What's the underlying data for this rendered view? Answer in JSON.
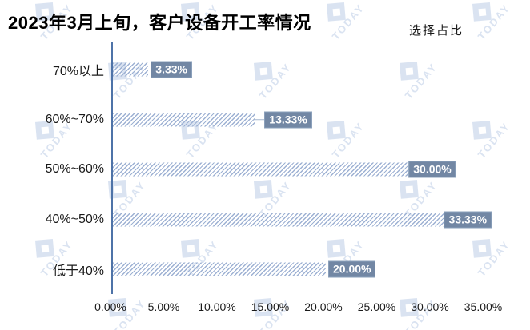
{
  "title": "2023年3月上旬，客户设备开工率情况",
  "legend": "选择占比",
  "watermark": {
    "text": "TODAY"
  },
  "chart_data": {
    "type": "bar",
    "orientation": "horizontal",
    "title": "2023年3月上旬，客户设备开工率情况",
    "series_name": "选择占比",
    "categories": [
      "70%以上",
      "60%~70%",
      "50%~60%",
      "40%~50%",
      "低于40%"
    ],
    "values": [
      3.33,
      13.33,
      30.0,
      33.33,
      20.0
    ],
    "labels": [
      "3.33%",
      "13.33%",
      "30.00%",
      "33.33%",
      "20.00%"
    ],
    "label_modes": [
      "outside",
      "leader",
      "center-end",
      "center-end",
      "outside"
    ],
    "xlabel": "",
    "ylabel": "",
    "xlim": [
      0,
      35
    ],
    "x_tick_values": [
      0,
      5,
      10,
      15,
      20,
      25,
      30,
      35
    ],
    "x_tick_labels": [
      "0.00%",
      "5.00%",
      "10.00%",
      "15.00%",
      "20.00%",
      "25.00%",
      "30.00%",
      "35.00%"
    ],
    "grid": false,
    "legend_position": "top-right",
    "bar_fill_style": "diagonal-hatch",
    "colors": {
      "bar_hatch": "#9db1d3",
      "label_box": "#7287a4",
      "label_box_border": "#8ba0bb",
      "label_text": "#ffffff",
      "axis_line": "#4e73a8",
      "leader_line": "#a6b7cf",
      "text": "#1a1a1a",
      "title_text": "#000000",
      "watermark": "#a9bedf",
      "background": "#ffffff"
    }
  }
}
